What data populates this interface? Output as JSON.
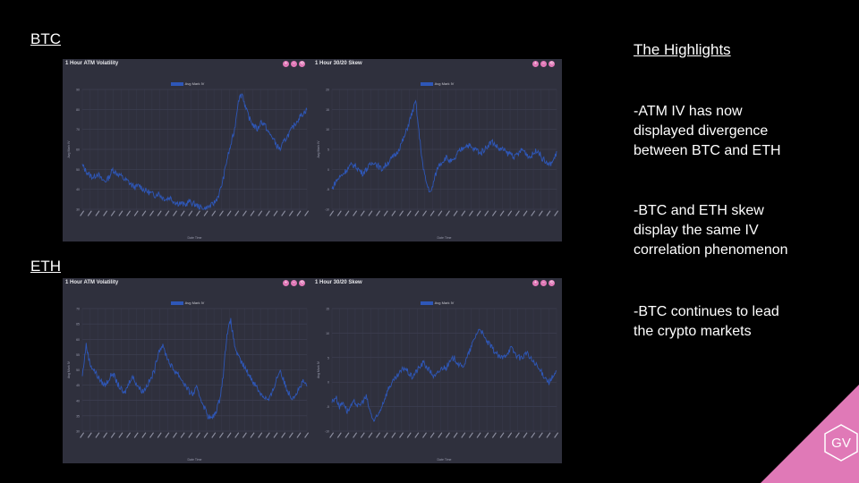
{
  "labels": {
    "btc": "BTC",
    "eth": "ETH"
  },
  "highlights": {
    "title": "The Highlights",
    "items": [
      "-ATM IV has now\ndisplayed  divergence\nbetween BTC and ETH",
      "-BTC and ETH skew\ndisplay  the same IV\ncorrelation phenomenon",
      "-BTC continues to lead\nthe crypto markets"
    ]
  },
  "logo": {
    "text": "GV",
    "color": "#e079b7"
  },
  "colors": {
    "panel_bg": "#2f303d",
    "line": "#2e57b8",
    "tool": "#e079b7"
  },
  "chart_data": [
    {
      "id": "btc-atm",
      "type": "line",
      "title": "1 Hour ATM Volatility",
      "legend": "Avg Mark IV",
      "xlabel": "Date Time",
      "ylabel": "Avg Mark IV",
      "ylim": [
        30,
        90
      ],
      "yticks": [
        30,
        40,
        50,
        60,
        70,
        80,
        90
      ],
      "series": [
        {
          "name": "Avg Mark IV",
          "values": [
            52,
            49,
            47,
            46,
            48,
            45,
            44,
            46,
            50,
            48,
            47,
            45,
            44,
            42,
            41,
            42,
            40,
            39,
            38,
            37,
            38,
            36,
            35,
            36,
            34,
            33,
            33,
            32,
            34,
            33,
            32,
            31,
            30,
            31,
            32,
            34,
            38,
            45,
            55,
            62,
            70,
            85,
            88,
            80,
            75,
            72,
            70,
            74,
            72,
            68,
            66,
            62,
            60,
            64,
            67,
            70,
            73,
            76,
            78,
            80
          ]
        }
      ],
      "tools": [
        "+",
        "−",
        "⟲"
      ]
    },
    {
      "id": "btc-skew",
      "type": "line",
      "title": "1 Hour 30/20 Skew",
      "legend": "Avg Mark IV",
      "xlabel": "Date Time",
      "ylabel": "Avg Mark IV",
      "ylim": [
        -10,
        20
      ],
      "yticks": [
        -10,
        -5,
        0,
        5,
        10,
        15,
        20
      ],
      "series": [
        {
          "name": "Avg Mark IV",
          "values": [
            -5,
            -3,
            -2,
            -1,
            0,
            1,
            1,
            0,
            -1,
            0,
            1,
            2,
            1,
            0,
            1,
            2,
            3,
            4,
            6,
            8,
            11,
            14,
            17,
            8,
            0,
            -4,
            -6,
            -2,
            1,
            2,
            3,
            2,
            2,
            4,
            5,
            6,
            6,
            5,
            5,
            4,
            5,
            6,
            7,
            6,
            5,
            5,
            4,
            4,
            3,
            4,
            5,
            4,
            3,
            4,
            5,
            3,
            2,
            1,
            2,
            4
          ]
        }
      ],
      "tools": [
        "+",
        "−",
        "⟲"
      ]
    },
    {
      "id": "eth-atm",
      "type": "line",
      "title": "1 Hour ATM Volatility",
      "legend": "Avg Mark IV",
      "xlabel": "Date Time",
      "ylabel": "Avg Mark IV",
      "ylim": [
        30,
        70
      ],
      "yticks": [
        30,
        35,
        40,
        45,
        50,
        55,
        60,
        65,
        70
      ],
      "series": [
        {
          "name": "Avg Mark IV",
          "values": [
            48,
            58,
            52,
            50,
            48,
            46,
            45,
            47,
            49,
            46,
            44,
            42,
            45,
            48,
            46,
            44,
            43,
            45,
            47,
            50,
            56,
            58,
            55,
            52,
            50,
            49,
            47,
            45,
            43,
            42,
            44,
            41,
            38,
            35,
            34,
            36,
            40,
            48,
            62,
            66,
            58,
            54,
            52,
            50,
            48,
            46,
            44,
            42,
            41,
            40,
            43,
            47,
            50,
            46,
            43,
            41,
            42,
            44,
            46,
            45
          ]
        }
      ],
      "tools": [
        "+",
        "−",
        "⟲"
      ]
    },
    {
      "id": "eth-skew",
      "type": "line",
      "title": "1 Hour 30/20 Skew",
      "legend": "Avg Mark IV",
      "xlabel": "Date Time",
      "ylabel": "Avg Mark IV",
      "ylim": [
        -10,
        15
      ],
      "yticks": [
        -10,
        -5,
        0,
        5,
        10,
        15
      ],
      "series": [
        {
          "name": "Avg Mark IV",
          "values": [
            -4,
            -3,
            -5,
            -4,
            -6,
            -5,
            -4,
            -5,
            -4,
            -3,
            -6,
            -8,
            -7,
            -5,
            -3,
            -1,
            0,
            1,
            2,
            3,
            2,
            1,
            2,
            3,
            4,
            3,
            2,
            1,
            2,
            3,
            3,
            4,
            5,
            4,
            3,
            4,
            6,
            8,
            10,
            11,
            9,
            8,
            7,
            6,
            5,
            5,
            6,
            7,
            6,
            5,
            5,
            6,
            5,
            4,
            3,
            2,
            1,
            0,
            1,
            2
          ]
        }
      ],
      "tools": [
        "+",
        "−",
        "⟲"
      ]
    }
  ]
}
